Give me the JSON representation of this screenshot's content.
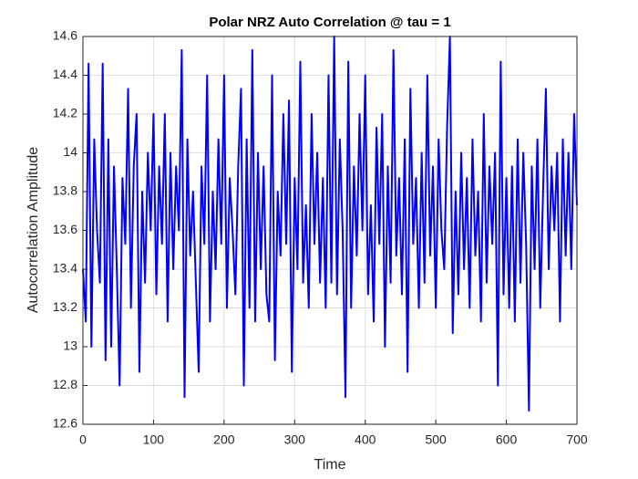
{
  "chart_data": {
    "type": "line",
    "title": "Polar NRZ Auto Correlation @ tau = 1",
    "x_label": "Time",
    "y_label": "Autocorrelation Amplitude",
    "xlim": [
      0,
      700
    ],
    "ylim": [
      12.6,
      14.6
    ],
    "xticks": [
      0,
      100,
      200,
      300,
      400,
      500,
      600,
      700
    ],
    "yticks": [
      12.6,
      12.8,
      13,
      13.2,
      13.4,
      13.6,
      13.8,
      14,
      14.2,
      14.4,
      14.6
    ],
    "grid": true,
    "x": [
      0,
      4,
      8,
      12,
      16,
      20,
      24,
      28,
      32,
      36,
      40,
      44,
      48,
      52,
      56,
      60,
      64,
      68,
      72,
      76,
      80,
      84,
      88,
      92,
      96,
      100,
      104,
      108,
      112,
      116,
      120,
      124,
      128,
      132,
      136,
      140,
      144,
      148,
      152,
      156,
      160,
      164,
      168,
      172,
      176,
      180,
      184,
      188,
      192,
      196,
      200,
      204,
      208,
      212,
      216,
      220,
      224,
      228,
      232,
      236,
      240,
      244,
      248,
      252,
      256,
      260,
      264,
      268,
      272,
      276,
      280,
      284,
      288,
      292,
      296,
      300,
      304,
      308,
      312,
      316,
      320,
      324,
      328,
      332,
      336,
      340,
      344,
      348,
      352,
      356,
      360,
      364,
      368,
      372,
      376,
      380,
      384,
      388,
      392,
      396,
      400,
      404,
      408,
      412,
      416,
      420,
      424,
      428,
      432,
      436,
      440,
      444,
      448,
      452,
      456,
      460,
      464,
      468,
      472,
      476,
      480,
      484,
      488,
      492,
      496,
      500,
      504,
      508,
      512,
      516,
      520,
      524,
      528,
      532,
      536,
      540,
      544,
      548,
      552,
      556,
      560,
      564,
      568,
      572,
      576,
      580,
      584,
      588,
      592,
      596,
      600,
      604,
      608,
      612,
      616,
      620,
      624,
      628,
      632,
      636,
      640,
      644,
      648,
      652,
      656,
      660,
      664,
      668,
      672,
      676,
      680,
      684,
      688,
      692,
      696,
      700
    ],
    "series": [
      {
        "color": "#0000ff",
        "values": [
          13.4,
          13.13,
          14.46,
          13.0,
          14.07,
          13.6,
          13.33,
          14.46,
          12.93,
          14.07,
          13.0,
          13.93,
          13.4,
          12.8,
          13.87,
          13.53,
          14.33,
          13.2,
          13.93,
          14.2,
          12.87,
          13.8,
          13.33,
          14.0,
          13.6,
          14.2,
          13.27,
          13.93,
          13.53,
          14.2,
          13.13,
          14.0,
          13.4,
          13.93,
          13.6,
          14.53,
          12.74,
          14.07,
          13.47,
          13.8,
          13.33,
          12.87,
          13.93,
          13.53,
          14.4,
          13.13,
          13.8,
          13.4,
          14.07,
          13.53,
          14.4,
          13.2,
          13.87,
          13.6,
          13.27,
          13.93,
          14.33,
          12.8,
          14.07,
          13.2,
          14.53,
          13.13,
          14.0,
          13.4,
          13.93,
          13.27,
          13.13,
          14.4,
          12.93,
          13.8,
          13.47,
          14.2,
          13.53,
          14.27,
          12.87,
          13.87,
          13.4,
          14.47,
          13.33,
          13.73,
          13.2,
          14.2,
          13.53,
          14.0,
          13.33,
          13.87,
          13.2,
          14.4,
          13.33,
          14.6,
          13.27,
          14.07,
          13.6,
          12.74,
          14.47,
          13.2,
          13.93,
          13.47,
          14.2,
          13.6,
          14.4,
          13.27,
          13.73,
          13.13,
          14.13,
          13.53,
          14.2,
          13.0,
          13.93,
          13.33,
          14.53,
          13.47,
          13.87,
          13.27,
          14.07,
          12.87,
          14.33,
          13.53,
          13.87,
          13.2,
          14.0,
          13.33,
          14.4,
          13.47,
          13.93,
          13.2,
          14.07,
          13.6,
          13.4,
          14.13,
          14.6,
          13.07,
          13.8,
          13.27,
          14.0,
          13.4,
          13.87,
          13.2,
          14.07,
          13.47,
          13.8,
          13.13,
          14.2,
          13.33,
          13.93,
          13.53,
          14.0,
          12.8,
          14.47,
          13.27,
          13.87,
          13.2,
          13.93,
          13.13,
          14.07,
          13.33,
          14.0,
          13.53,
          12.67,
          13.93,
          13.4,
          14.07,
          13.2,
          13.8,
          14.33,
          13.4,
          13.93,
          13.6,
          14.0,
          13.13,
          14.07,
          13.47,
          14.0,
          13.4,
          14.2,
          13.73
        ]
      }
    ]
  }
}
